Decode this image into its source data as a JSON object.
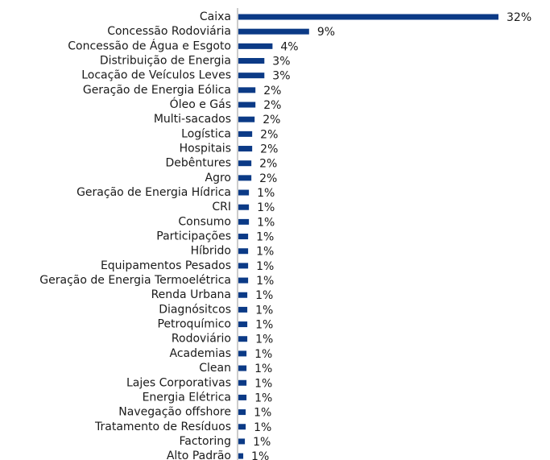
{
  "chart_data": {
    "type": "hbar",
    "color": "#0b3a86",
    "categories": [
      "Caixa",
      "Concessão Rodoviária",
      "Concessão de Água e Esgoto",
      "Distribuição de Energia",
      "Locação de Veículos Leves",
      "Geração de Energia Eólica",
      "Óleo e Gás",
      "Multi-sacados",
      "Logística",
      "Hospitais",
      "Debêntures",
      "Agro",
      "Geração de Energia Hídrica",
      "CRI",
      "Consumo",
      "Participações",
      "Híbrido",
      "Equipamentos Pesados",
      "Geração de Energia Termoelétrica",
      "Renda Urbana",
      "Diagnósitcos",
      "Petroquímico",
      "Rodoviário",
      "Academias",
      "Clean",
      "Lajes Corporativas",
      "Energia Elétrica",
      "Navegação offshore",
      "Tratamento de Resíduos",
      "Factoring",
      "Alto Padrão"
    ],
    "values": [
      32,
      8.7,
      4.2,
      3.2,
      3.2,
      2.1,
      2.1,
      2.0,
      1.7,
      1.7,
      1.6,
      1.6,
      1.3,
      1.3,
      1.3,
      1.2,
      1.2,
      1.2,
      1.2,
      1.1,
      1.1,
      1.1,
      1.1,
      1.0,
      1.0,
      1.0,
      1.0,
      0.9,
      0.9,
      0.8,
      0.6
    ],
    "value_labels": [
      "32%",
      "9%",
      "4%",
      "3%",
      "3%",
      "2%",
      "2%",
      "2%",
      "2%",
      "2%",
      "2%",
      "2%",
      "1%",
      "1%",
      "1%",
      "1%",
      "1%",
      "1%",
      "1%",
      "1%",
      "1%",
      "1%",
      "1%",
      "1%",
      "1%",
      "1%",
      "1%",
      "1%",
      "1%",
      "1%",
      "1%"
    ],
    "xlim": [
      0,
      32
    ]
  }
}
